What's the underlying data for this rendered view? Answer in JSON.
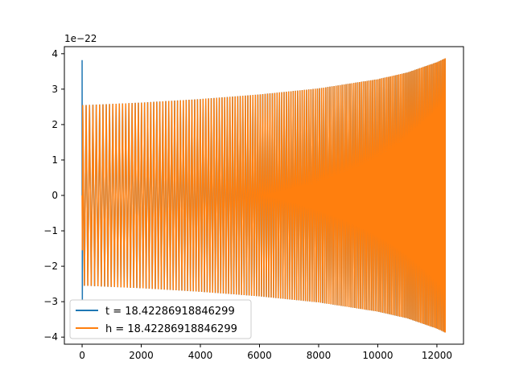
{
  "chart_data": {
    "type": "line",
    "title": "",
    "xlabel": "",
    "ylabel": "",
    "y_offset_text": "1e−22",
    "xlim": [
      -600,
      12900
    ],
    "ylim": [
      -4.2,
      4.2
    ],
    "x_ticks": [
      0,
      2000,
      4000,
      6000,
      8000,
      10000,
      12000
    ],
    "x_tick_labels": [
      "0",
      "2000",
      "4000",
      "6000",
      "8000",
      "10000",
      "12000"
    ],
    "y_ticks": [
      -4,
      -3,
      -2,
      -1,
      0,
      1,
      2,
      3,
      4
    ],
    "y_tick_labels": [
      "−4",
      "−3",
      "−2",
      "−1",
      "0",
      "1",
      "2",
      "3",
      "4"
    ],
    "grid": false,
    "legend_position": "lower-left",
    "series": [
      {
        "name": "t = 18.42286918846299",
        "color": "#1f77b4",
        "x_range": [
          0,
          12280
        ],
        "initial_spike": {
          "x": 0,
          "ymax": 3.82,
          "ymin": -2.95
        },
        "envelope_x": [
          100,
          2000,
          4000,
          6000,
          8000,
          10000,
          11000,
          12000,
          12280
        ],
        "envelope_amplitude": [
          2.55,
          2.62,
          2.72,
          2.85,
          3.02,
          3.28,
          3.47,
          3.76,
          3.87
        ],
        "final_value": -2.95
      },
      {
        "name": "h = 18.42286918846299",
        "color": "#ff7f0e",
        "x_range": [
          0,
          12280
        ],
        "initial_spike": {
          "x": 0,
          "ymax": 0,
          "ymin": -1.55
        },
        "envelope_x": [
          100,
          2000,
          4000,
          6000,
          8000,
          10000,
          11000,
          12000,
          12280
        ],
        "envelope_amplitude": [
          2.55,
          2.62,
          2.72,
          2.85,
          3.02,
          3.28,
          3.47,
          3.76,
          3.87
        ],
        "final_value": -3.87
      }
    ]
  }
}
